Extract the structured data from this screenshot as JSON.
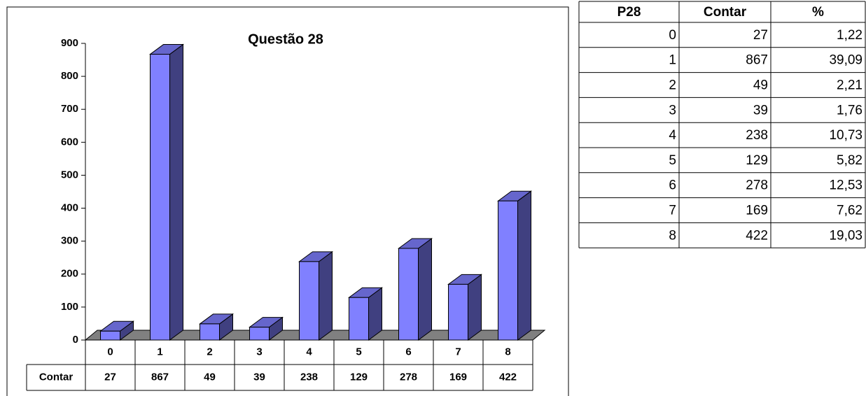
{
  "chart_data": {
    "type": "bar",
    "title": "Questão 28",
    "categories": [
      "0",
      "1",
      "2",
      "3",
      "4",
      "5",
      "6",
      "7",
      "8"
    ],
    "series": [
      {
        "name": "Contar",
        "color": "#8080ff",
        "values": [
          27,
          867,
          49,
          39,
          238,
          129,
          278,
          169,
          422
        ]
      }
    ],
    "ylim": [
      0,
      900
    ],
    "yticks": [
      0,
      100,
      200,
      300,
      400,
      500,
      600,
      700,
      800,
      900
    ]
  },
  "table": {
    "header": [
      "P28",
      "Contar",
      "%"
    ],
    "rows": [
      [
        0,
        27,
        "1,22"
      ],
      [
        1,
        867,
        "39,09"
      ],
      [
        2,
        49,
        "2,21"
      ],
      [
        3,
        39,
        "1,76"
      ],
      [
        4,
        238,
        "10,73"
      ],
      [
        5,
        129,
        "5,82"
      ],
      [
        6,
        278,
        "12,53"
      ],
      [
        7,
        169,
        "7,62"
      ],
      [
        8,
        422,
        "19,03"
      ]
    ]
  }
}
